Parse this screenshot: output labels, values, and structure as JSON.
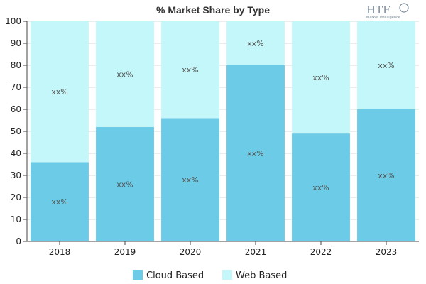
{
  "chart_data": {
    "type": "bar",
    "stacked": true,
    "title": "% Market Share by Type",
    "categories": [
      "2018",
      "2019",
      "2020",
      "2021",
      "2022",
      "2023"
    ],
    "series": [
      {
        "name": "Cloud Based",
        "color": "#6ccbe6",
        "values": [
          36,
          52,
          56,
          80,
          49,
          60
        ],
        "labels": [
          "xx%",
          "xx%",
          "xx%",
          "xx%",
          "xx%",
          "xx%"
        ]
      },
      {
        "name": "Web Based",
        "color": "#c4f7f9",
        "values": [
          64,
          48,
          44,
          20,
          51,
          40
        ],
        "labels": [
          "xx%",
          "xx%",
          "xx%",
          "xx%",
          "xx%",
          "xx%"
        ]
      }
    ],
    "ylim": [
      0,
      100
    ],
    "yticks": [
      0,
      10,
      20,
      30,
      40,
      50,
      60,
      70,
      80,
      90,
      100
    ],
    "grid": true,
    "legend_position": "bottom"
  },
  "logo": {
    "main": "HTF",
    "sub": "Market Intelligence",
    "color": "#7a8a99"
  }
}
